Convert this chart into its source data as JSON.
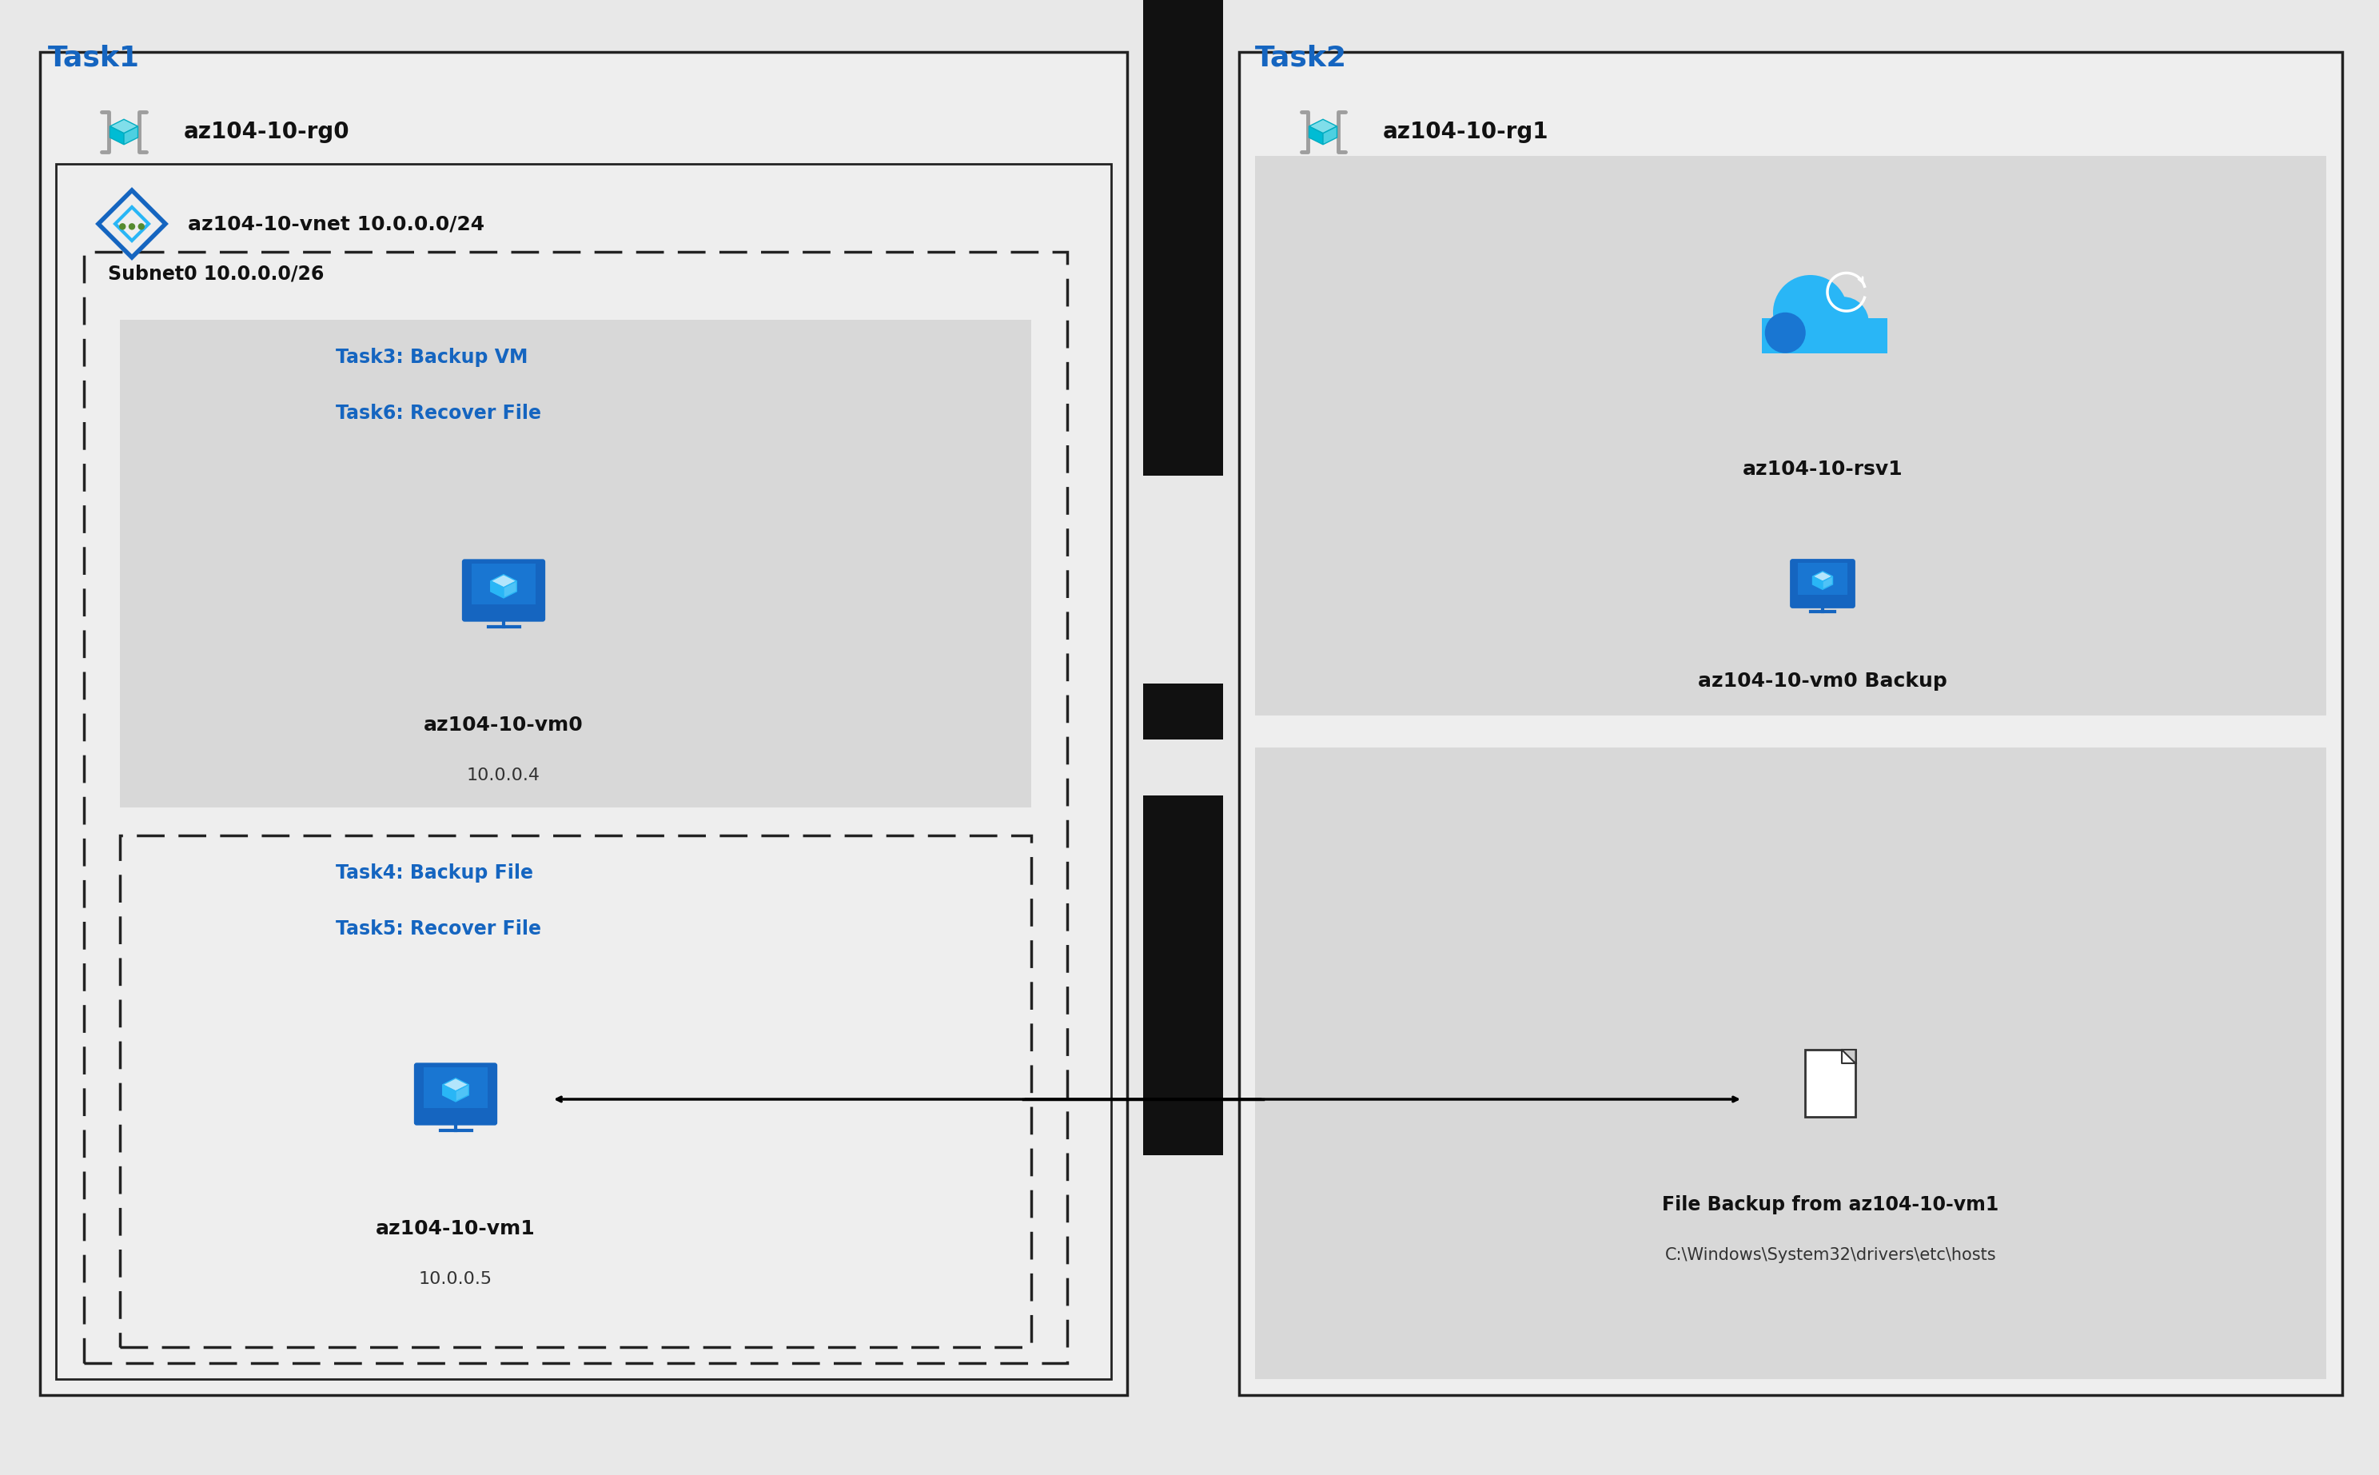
{
  "bg_color": "#e8e8e8",
  "task1_label": "Task1",
  "task2_label": "Task2",
  "rg0_label": "az104-10-rg0",
  "rg1_label": "az104-10-rg1",
  "vnet_label": "az104-10-vnet",
  "vnet_cidr": "10.0.0.0/24",
  "subnet_label": "Subnet0",
  "subnet_cidr": "10.0.0.0/26",
  "vm0_label": "az104-10-vm0",
  "vm0_ip": "10.0.0.4",
  "vm1_label": "az104-10-vm1",
  "vm1_ip": "10.0.0.5",
  "vm0_backup_label": "az104-10-vm0 Backup",
  "rsv_label": "az104-10-rsv1",
  "task3_label": "Task3: Backup VM",
  "task6_label": "Task6: Recover File",
  "task4_label": "Task4: Backup File",
  "task5_label": "Task5: Recover File",
  "file_backup_line1": "File Backup from az104-10-vm1",
  "file_backup_line2": "C:\\Windows\\System32\\drivers\\etc\\hosts",
  "blue_color": "#1e88e5",
  "dark_blue": "#0078d4",
  "task_label_color": "#1565c0",
  "black": "#000000",
  "white": "#ffffff",
  "gray_box": "#d0d0d0",
  "light_gray": "#f0f0f0"
}
